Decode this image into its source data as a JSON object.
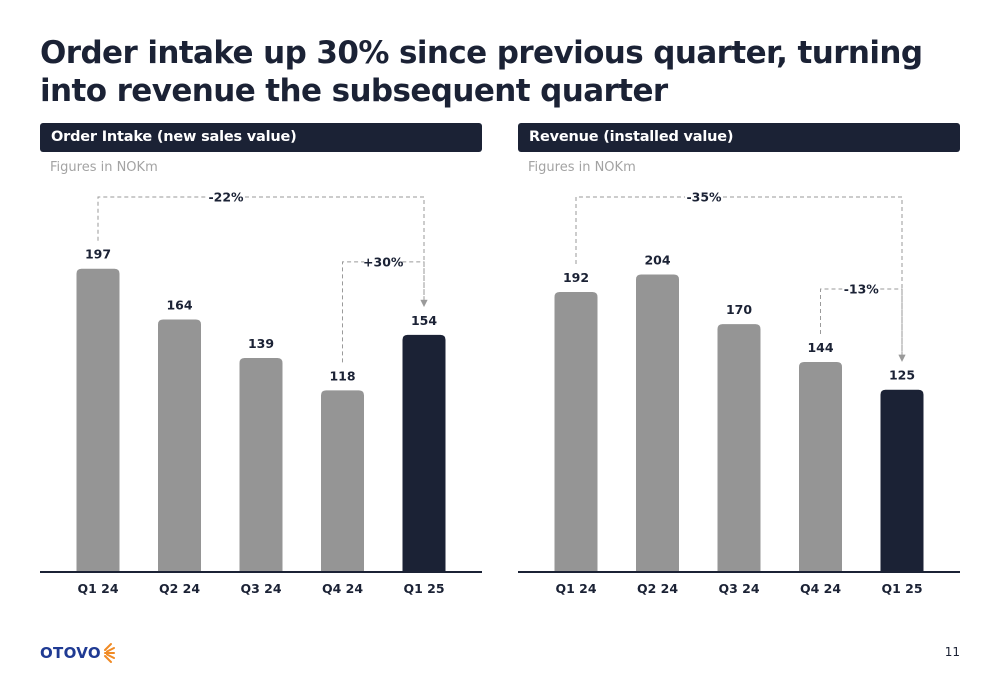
{
  "title": "Order intake up 30% since previous quarter, turning into revenue the subsequent quarter",
  "logo": {
    "text": "OTOVO"
  },
  "page_number": "11",
  "colors": {
    "bar_default": "#959595",
    "bar_highlight": "#1b2235",
    "header_bg": "#1b2235",
    "logo": "#1f3a93",
    "sun_rays": "#f08a24"
  },
  "charts": [
    {
      "header": "Order Intake (new sales value)",
      "subtitle": "Figures in NOKm"
    },
    {
      "header": "Revenue (installed value)",
      "subtitle": "Figures in NOKm"
    }
  ],
  "chart_data": [
    {
      "type": "bar",
      "title": "Order Intake (new sales value)",
      "subtitle": "Figures in NOKm",
      "categories": [
        "Q1 24",
        "Q2 24",
        "Q3 24",
        "Q4 24",
        "Q1 25"
      ],
      "values": [
        197,
        164,
        139,
        118,
        154
      ],
      "value_labels": [
        "197",
        "164",
        "139",
        "118",
        "154"
      ],
      "highlight_index": 4,
      "ylim": [
        0,
        215
      ],
      "annotations": [
        {
          "label": "-22%",
          "from": 0,
          "to": 4,
          "level": "top"
        },
        {
          "label": "+30%",
          "from": 3,
          "to": 4,
          "level": "inner"
        }
      ]
    },
    {
      "type": "bar",
      "title": "Revenue (installed value)",
      "subtitle": "Figures in NOKm",
      "categories": [
        "Q1 24",
        "Q2 24",
        "Q3 24",
        "Q4 24",
        "Q1 25"
      ],
      "values": [
        192,
        204,
        170,
        144,
        125
      ],
      "value_labels": [
        "192",
        "204",
        "170",
        "144",
        "125"
      ],
      "highlight_index": 4,
      "ylim": [
        0,
        227
      ],
      "annotations": [
        {
          "label": "-35%",
          "from": 0,
          "to": 4,
          "level": "top"
        },
        {
          "label": "-13%",
          "from": 3,
          "to": 4,
          "level": "inner"
        }
      ]
    }
  ]
}
